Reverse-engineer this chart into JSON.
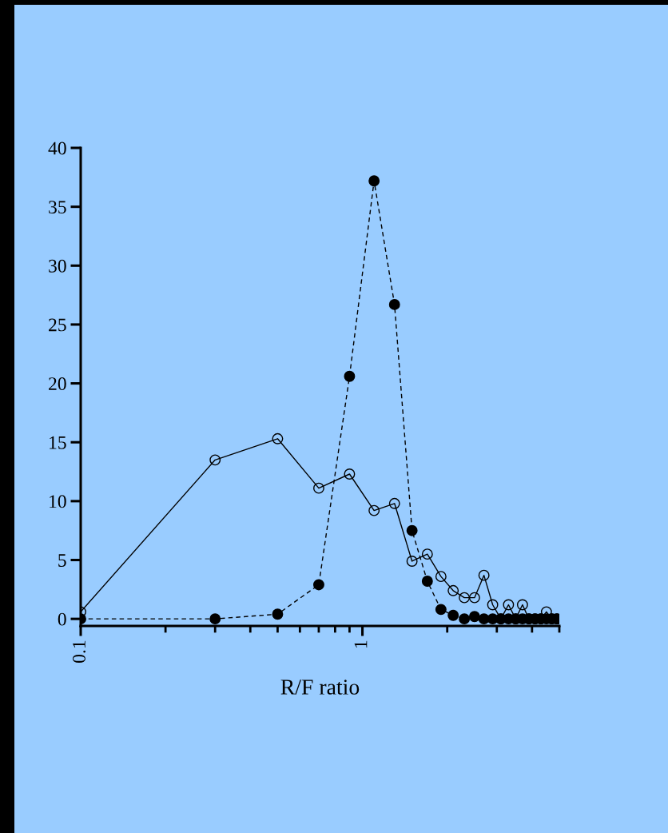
{
  "chart_data": {
    "type": "line",
    "xlabel": "R/F ratio",
    "log": "x",
    "xlim": [
      0.1,
      5
    ],
    "xticks": [
      {
        "value": 0.1,
        "label": "0.1"
      },
      1
    ],
    "ylim": [
      -0.6,
      40
    ],
    "yticks": [
      0,
      5,
      10,
      15,
      20,
      25,
      30,
      35,
      40
    ],
    "grid": false,
    "legend": false,
    "marker": "circle",
    "x": [
      0.1,
      0.3,
      0.5,
      0.7,
      0.9,
      1.1,
      1.3,
      1.5,
      1.7,
      1.9,
      2.1,
      2.3,
      2.5,
      2.7,
      2.9,
      3.1,
      3.3,
      3.5,
      3.7,
      3.9,
      4.1,
      4.3,
      4.5,
      4.7,
      4.9
    ],
    "series": [
      {
        "color": "#000000",
        "line_style": "solid",
        "values": [
          0.6,
          13.5,
          15.3,
          11.1,
          12.3,
          9.2,
          9.8,
          4.9,
          5.5,
          3.6,
          2.4,
          1.8,
          1.8,
          3.7,
          1.2,
          0,
          1.2,
          0,
          1.2,
          0,
          0,
          0,
          0.6,
          0,
          0
        ]
      },
      {
        "color": "#000000",
        "line_style": "dashed",
        "values": [
          0,
          0,
          0.4,
          2.9,
          20.6,
          37.2,
          26.7,
          7.5,
          3.2,
          0.8,
          0.3,
          0,
          0.2,
          0,
          0,
          0,
          0,
          0,
          0,
          0,
          0,
          0,
          0,
          0,
          0
        ]
      }
    ]
  }
}
